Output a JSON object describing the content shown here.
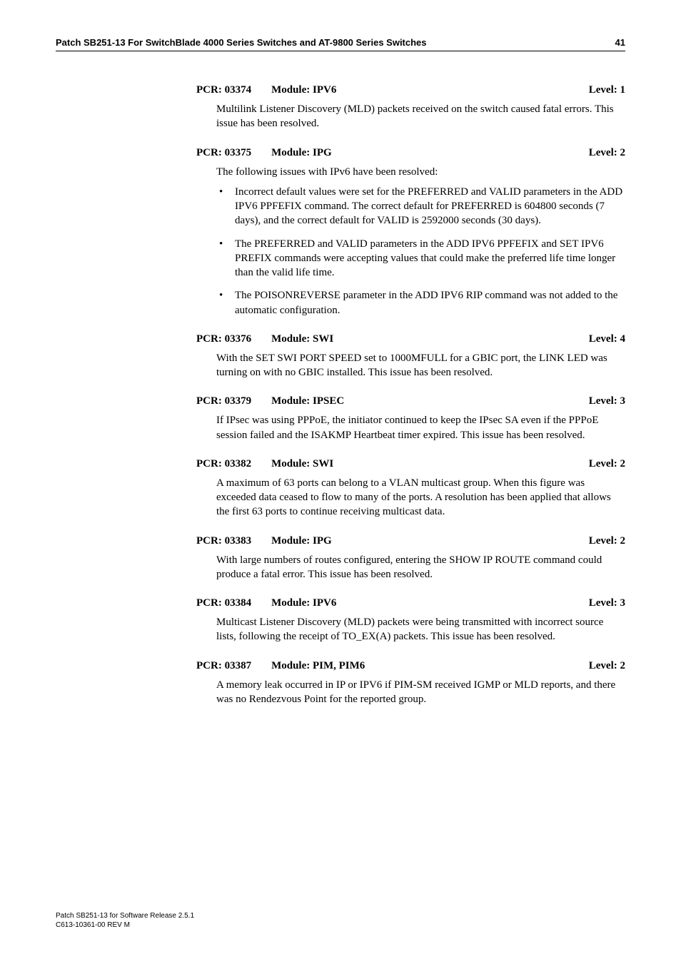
{
  "header": {
    "title": "Patch SB251-13 For SwitchBlade 4000 Series Switches and AT-9800 Series Switches",
    "page_number": "41"
  },
  "entries": [
    {
      "pcr": "PCR: 03374",
      "module": "Module: IPV6",
      "level": "Level: 1",
      "paragraphs": [
        "Multilink Listener Discovery (MLD) packets received on the switch caused fatal errors. This issue has been resolved."
      ],
      "bullets": []
    },
    {
      "pcr": "PCR: 03375",
      "module": "Module: IPG",
      "level": "Level: 2",
      "paragraphs": [
        "The following issues with IPv6 have been resolved:"
      ],
      "bullets": [
        "Incorrect default values were set for the PREFERRED and VALID parameters in the ADD IPV6 PPFEFIX command. The correct default for PREFERRED is 604800 seconds (7 days), and the correct default for VALID is 2592000 seconds (30 days).",
        "The PREFERRED and VALID parameters in the ADD IPV6 PPFEFIX and SET IPV6 PREFIX commands were accepting values that could make the preferred life time longer than the valid life time.",
        "The POISONREVERSE parameter in the ADD IPV6 RIP command was not added to the automatic configuration."
      ]
    },
    {
      "pcr": "PCR: 03376",
      "module": "Module: SWI",
      "level": "Level: 4",
      "paragraphs": [
        "With the SET SWI PORT SPEED set to 1000MFULL for a GBIC port, the LINK LED was turning on with no GBIC installed. This issue has been resolved."
      ],
      "bullets": []
    },
    {
      "pcr": "PCR: 03379",
      "module": "Module: IPSEC",
      "level": "Level: 3",
      "paragraphs": [
        "If IPsec was using PPPoE, the initiator continued to keep the IPsec SA even if the PPPoE session failed and the ISAKMP Heartbeat timer expired. This issue has been resolved."
      ],
      "bullets": []
    },
    {
      "pcr": "PCR: 03382",
      "module": "Module: SWI",
      "level": "Level: 2",
      "paragraphs": [
        "A maximum of 63 ports can belong to a VLAN multicast group. When this figure was exceeded data ceased to flow to many of the ports. A resolution has been applied that allows the first 63 ports to continue receiving multicast data."
      ],
      "bullets": []
    },
    {
      "pcr": "PCR: 03383",
      "module": "Module: IPG",
      "level": "Level: 2",
      "paragraphs": [
        "With large numbers of routes configured, entering the SHOW IP ROUTE command could produce a fatal error. This issue has been resolved."
      ],
      "bullets": []
    },
    {
      "pcr": "PCR: 03384",
      "module": "Module: IPV6",
      "level": "Level: 3",
      "paragraphs": [
        "Multicast Listener Discovery (MLD) packets were being transmitted with incorrect source lists, following the receipt of TO_EX(A) packets. This issue has been resolved."
      ],
      "bullets": []
    },
    {
      "pcr": "PCR: 03387",
      "module": "Module: PIM, PIM6",
      "level": "Level: 2",
      "paragraphs": [
        "A memory leak occurred in IP or IPV6 if PIM-SM received IGMP or MLD reports, and there was no Rendezvous Point for the reported group."
      ],
      "bullets": []
    }
  ],
  "footer": {
    "line1": "Patch SB251-13 for Software Release 2.5.1",
    "line2": "C613-10361-00 REV M"
  }
}
